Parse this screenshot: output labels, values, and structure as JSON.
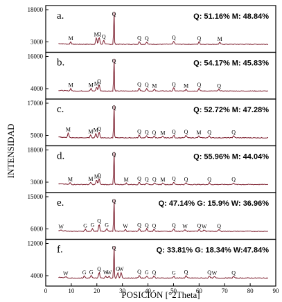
{
  "chart_data": {
    "type": "line",
    "xlabel": "POSICIÓN [°2Theta]",
    "ylabel": "INTENSIDAD",
    "xlim": [
      0,
      90
    ],
    "x_ticks": [
      "0",
      "10",
      "20",
      "30",
      "40",
      "50",
      "60",
      "70",
      "80",
      "90"
    ],
    "panels": [
      {
        "label": "a.",
        "composition": "Q: 51.16%  M: 48.84%",
        "y_ticks": [
          "18000",
          "3000"
        ],
        "ylim": [
          0,
          18000
        ],
        "peaks": [
          {
            "x": 9.8,
            "label": "M",
            "h": 0.07
          },
          {
            "x": 19.8,
            "label": "M",
            "h": 0.18
          },
          {
            "x": 20.9,
            "label": "Q",
            "h": 0.2
          },
          {
            "x": 22.7,
            "label": "Q",
            "h": 0.12
          },
          {
            "x": 26.7,
            "label": "Q",
            "h": 1.0
          },
          {
            "x": 36.6,
            "label": "Q",
            "h": 0.08
          },
          {
            "x": 39.5,
            "label": "Q",
            "h": 0.07
          },
          {
            "x": 50.1,
            "label": "Q",
            "h": 0.09
          },
          {
            "x": 60.0,
            "label": "Q",
            "h": 0.07
          },
          {
            "x": 68.1,
            "label": "M",
            "h": 0.05
          }
        ]
      },
      {
        "label": "b.",
        "composition": "Q: 54.17%  M: 45.83%",
        "y_ticks": [
          "16000",
          "4000"
        ],
        "ylim": [
          0,
          16000
        ],
        "peaks": [
          {
            "x": 9.8,
            "label": "M",
            "h": 0.07
          },
          {
            "x": 17.7,
            "label": "M",
            "h": 0.07
          },
          {
            "x": 19.9,
            "label": "M",
            "h": 0.11
          },
          {
            "x": 20.9,
            "label": "Q",
            "h": 0.18
          },
          {
            "x": 26.7,
            "label": "Q",
            "h": 1.0
          },
          {
            "x": 36.6,
            "label": "Q",
            "h": 0.09
          },
          {
            "x": 39.5,
            "label": "Q",
            "h": 0.08
          },
          {
            "x": 42.5,
            "label": "M",
            "h": 0.05
          },
          {
            "x": 50.1,
            "label": "Q",
            "h": 0.09
          },
          {
            "x": 54.9,
            "label": "M",
            "h": 0.05
          },
          {
            "x": 60.0,
            "label": "Q",
            "h": 0.08
          },
          {
            "x": 67.8,
            "label": "Q",
            "h": 0.05
          }
        ]
      },
      {
        "label": "c.",
        "composition": "Q: 52.72%  M: 47.28%",
        "y_ticks": [
          "17000",
          "5000"
        ],
        "ylim": [
          0,
          17000
        ],
        "peaks": [
          {
            "x": 8.8,
            "label": "M",
            "h": 0.14
          },
          {
            "x": 17.6,
            "label": "M",
            "h": 0.08
          },
          {
            "x": 19.6,
            "label": "M",
            "h": 0.12
          },
          {
            "x": 20.9,
            "label": "Q",
            "h": 0.16
          },
          {
            "x": 26.7,
            "label": "Q",
            "h": 1.0
          },
          {
            "x": 36.6,
            "label": "Q",
            "h": 0.08
          },
          {
            "x": 39.5,
            "label": "Q",
            "h": 0.06
          },
          {
            "x": 42.4,
            "label": "Q",
            "h": 0.05
          },
          {
            "x": 45.8,
            "label": "M",
            "h": 0.04
          },
          {
            "x": 50.1,
            "label": "Q",
            "h": 0.07
          },
          {
            "x": 54.9,
            "label": "Q",
            "h": 0.07
          },
          {
            "x": 59.9,
            "label": "M",
            "h": 0.05
          },
          {
            "x": 64.0,
            "label": "Q",
            "h": 0.06
          },
          {
            "x": 73.5,
            "label": "Q",
            "h": 0.06
          }
        ]
      },
      {
        "label": "d.",
        "composition": "Q: 55.96%  M: 44.04%",
        "y_ticks": [
          "18000",
          "3000"
        ],
        "ylim": [
          0,
          18000
        ],
        "peaks": [
          {
            "x": 9.6,
            "label": "M",
            "h": 0.05
          },
          {
            "x": 17.6,
            "label": "M",
            "h": 0.06
          },
          {
            "x": 19.9,
            "label": "M",
            "h": 0.13
          },
          {
            "x": 20.9,
            "label": "Q",
            "h": 0.16
          },
          {
            "x": 26.7,
            "label": "Q",
            "h": 1.0
          },
          {
            "x": 31.5,
            "label": "M",
            "h": 0.04
          },
          {
            "x": 36.6,
            "label": "Q",
            "h": 0.07
          },
          {
            "x": 39.5,
            "label": "Q",
            "h": 0.05
          },
          {
            "x": 42.5,
            "label": "Q",
            "h": 0.05
          },
          {
            "x": 45.8,
            "label": "M",
            "h": 0.04
          },
          {
            "x": 50.1,
            "label": "Q",
            "h": 0.07
          },
          {
            "x": 54.9,
            "label": "Q",
            "h": 0.05
          },
          {
            "x": 64.0,
            "label": "Q",
            "h": 0.05
          },
          {
            "x": 73.5,
            "label": "Q",
            "h": 0.05
          }
        ]
      },
      {
        "label": "e.",
        "composition": "Q: 47.14%  G: 15.9%  W: 36.96%",
        "y_ticks": [
          "15000",
          "6000"
        ],
        "ylim": [
          0,
          15000
        ],
        "peaks": [
          {
            "x": 6.0,
            "label": "W",
            "h": 0.03
          },
          {
            "x": 15.5,
            "label": "G",
            "h": 0.06
          },
          {
            "x": 18.3,
            "label": "G",
            "h": 0.08
          },
          {
            "x": 20.9,
            "label": "Q",
            "h": 0.2
          },
          {
            "x": 23.9,
            "label": "G",
            "h": 0.08
          },
          {
            "x": 26.7,
            "label": "Q",
            "h": 1.0
          },
          {
            "x": 31.2,
            "label": "W",
            "h": 0.05
          },
          {
            "x": 36.6,
            "label": "Q",
            "h": 0.08
          },
          {
            "x": 39.5,
            "label": "Q",
            "h": 0.07
          },
          {
            "x": 42.4,
            "label": "Q",
            "h": 0.06
          },
          {
            "x": 50.1,
            "label": "Q",
            "h": 0.07
          },
          {
            "x": 54.5,
            "label": "W",
            "h": 0.04
          },
          {
            "x": 60.0,
            "label": "Q",
            "h": 0.06
          },
          {
            "x": 62.0,
            "label": "W",
            "h": 0.04
          },
          {
            "x": 67.8,
            "label": "Q",
            "h": 0.05
          }
        ]
      },
      {
        "label": "f.",
        "composition": "Q: 33.81%  G: 18.34%  W:47.84%",
        "y_ticks": [
          "12000",
          "4000"
        ],
        "ylim": [
          0,
          12000
        ],
        "peaks": [
          {
            "x": 7.8,
            "label": "W",
            "h": 0.03
          },
          {
            "x": 15.1,
            "label": "G",
            "h": 0.06
          },
          {
            "x": 17.8,
            "label": "G",
            "h": 0.07
          },
          {
            "x": 20.9,
            "label": "Q",
            "h": 0.16
          },
          {
            "x": 23.5,
            "label": "W",
            "h": 0.06
          },
          {
            "x": 24.8,
            "label": "W",
            "h": 0.06
          },
          {
            "x": 26.7,
            "label": "Q",
            "h": 1.0
          },
          {
            "x": 28.2,
            "label": "G",
            "h": 0.16
          },
          {
            "x": 29.5,
            "label": "W",
            "h": 0.16
          },
          {
            "x": 36.6,
            "label": "Q",
            "h": 0.08
          },
          {
            "x": 39.5,
            "label": "G",
            "h": 0.06
          },
          {
            "x": 42.4,
            "label": "Q",
            "h": 0.06
          },
          {
            "x": 50.1,
            "label": "G",
            "h": 0.05
          },
          {
            "x": 54.9,
            "label": "Q",
            "h": 0.07
          },
          {
            "x": 64.0,
            "label": "Q",
            "h": 0.06
          },
          {
            "x": 66.0,
            "label": "W",
            "h": 0.04
          },
          {
            "x": 73.5,
            "label": "Q",
            "h": 0.05
          }
        ]
      }
    ]
  },
  "colors": {
    "trace": "#7a1a2a",
    "frame": "#000000"
  }
}
